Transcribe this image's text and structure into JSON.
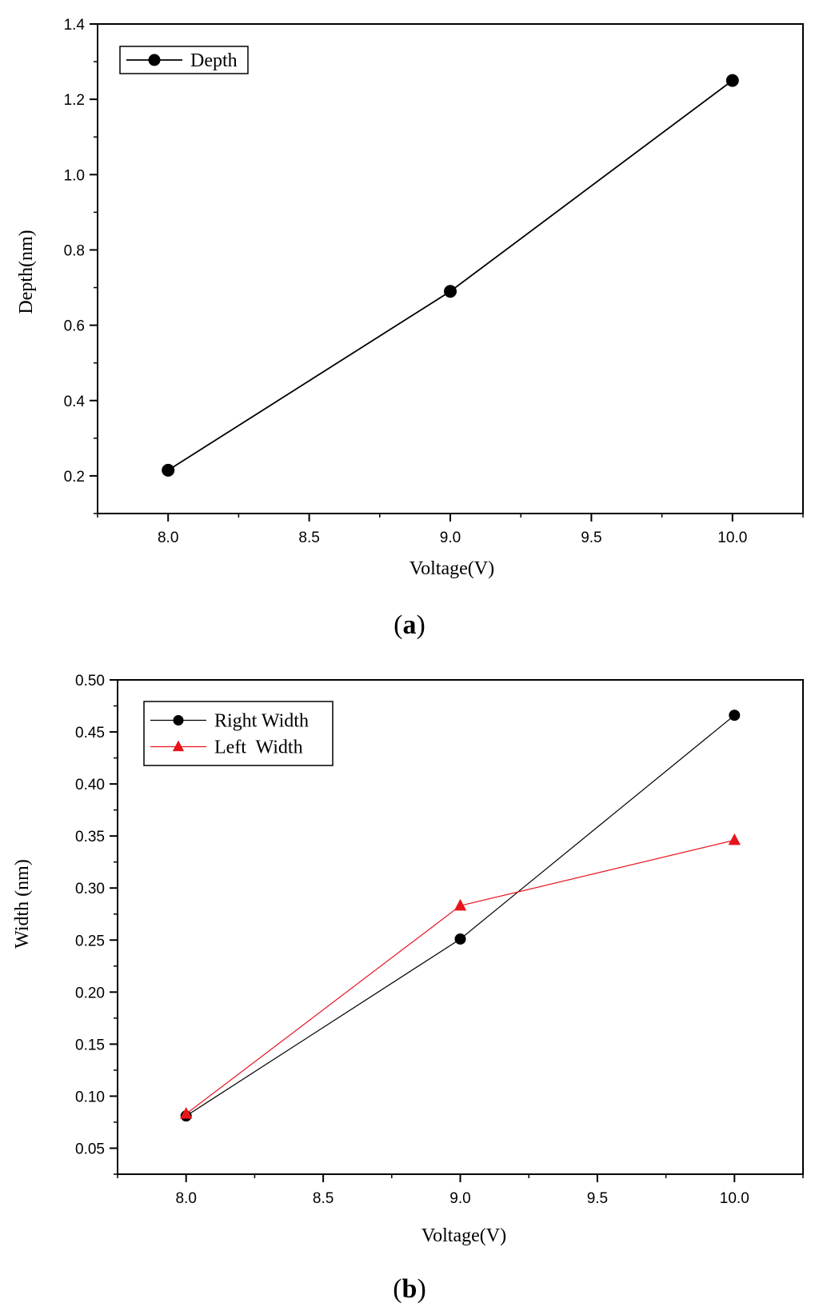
{
  "chart_data": [
    {
      "type": "line",
      "panel_label": "a",
      "title": "",
      "xlabel": "Voltage(V)",
      "ylabel": "Depth(nm)",
      "xlim": [
        7.75,
        10.25
      ],
      "ylim": [
        0.1,
        1.4
      ],
      "x_ticks": [
        "8.0",
        "8.5",
        "9.0",
        "9.5",
        "10.0"
      ],
      "y_ticks": [
        "0.2",
        "0.4",
        "0.6",
        "0.8",
        "1.0",
        "1.2",
        "1.4"
      ],
      "legend_position": "top-left",
      "series": [
        {
          "name": "Depth",
          "color": "#000000",
          "marker": "circle",
          "x": [
            8.0,
            9.0,
            10.0
          ],
          "values": [
            0.215,
            0.69,
            1.25
          ]
        }
      ]
    },
    {
      "type": "line",
      "panel_label": "b",
      "title": "",
      "xlabel": "Voltage(V)",
      "ylabel": "Width (nm)",
      "xlim": [
        7.75,
        10.25
      ],
      "ylim": [
        0.025,
        0.5
      ],
      "x_ticks": [
        "8.0",
        "8.5",
        "9.0",
        "9.5",
        "10.0"
      ],
      "y_ticks": [
        "0.05",
        "0.10",
        "0.15",
        "0.20",
        "0.25",
        "0.30",
        "0.35",
        "0.40",
        "0.45",
        "0.50"
      ],
      "legend_position": "top-left",
      "series": [
        {
          "name": "Right Width",
          "color": "#000000",
          "marker": "circle",
          "x": [
            8.0,
            9.0,
            10.0
          ],
          "values": [
            0.081,
            0.251,
            0.466
          ]
        },
        {
          "name": "Left  Width",
          "color": "#e8141b",
          "marker": "triangle",
          "x": [
            8.0,
            9.0,
            10.0
          ],
          "values": [
            0.083,
            0.283,
            0.346
          ]
        }
      ]
    }
  ]
}
